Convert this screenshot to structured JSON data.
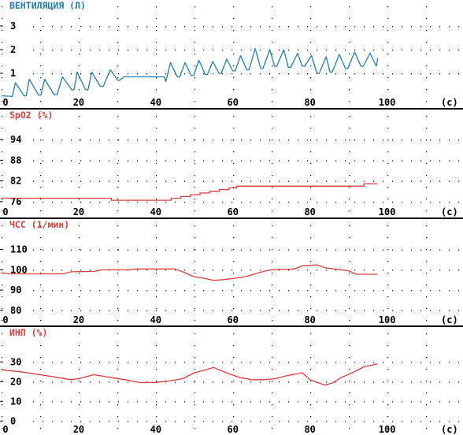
{
  "colors": {
    "ventilation": "#1f7fb3",
    "spo2": "#e03c3c",
    "hr": "#e03c3c",
    "pi": "#e03c3c",
    "axis_text": "#000000",
    "grid_dots": "#000000",
    "separator": "#000000"
  },
  "x_unit": "(с)",
  "x_ticks": [
    0,
    20,
    40,
    60,
    80,
    100
  ],
  "chart_data": [
    {
      "type": "line",
      "title": "ВЕНТИЛЯЦИЯ (Л)",
      "xlabel": "(с)",
      "xlim": [
        0,
        115
      ],
      "ylim": [
        0,
        3.5
      ],
      "x_tick_labels": [
        "0",
        "20",
        "40",
        "60",
        "80",
        "100"
      ],
      "y_ticks": [
        1,
        2,
        3
      ],
      "y_tick_labels": [
        "1",
        "2",
        "3"
      ],
      "series": [
        {
          "color_key": "ventilation",
          "x": [
            0,
            2.8,
            3.6,
            5.8,
            6.4,
            7.2,
            9.6,
            10.2,
            11.2,
            13.6,
            14.4,
            15.8,
            18.2,
            18.8,
            19.6,
            21.8,
            22.4,
            23.4,
            25.6,
            26.4,
            28.2,
            30.2,
            30.6,
            31.8,
            42.2,
            42.6,
            43.8,
            45.6,
            46.2,
            47.6,
            49.2,
            49.8,
            51.2,
            52.8,
            53.4,
            54.8,
            56.4,
            57.0,
            58.4,
            60.0,
            60.6,
            62.0,
            63.6,
            64.2,
            65.8,
            67.2,
            67.8,
            69.6,
            70.8,
            71.4,
            73.2,
            74.4,
            75.0,
            76.8,
            78.0,
            78.6,
            80.4,
            81.8,
            82.4,
            84.2,
            85.2,
            85.8,
            87.6,
            89.2,
            89.8,
            91.6,
            93.2,
            93.8,
            95.6,
            97.2,
            97.6
          ],
          "y": [
            0.05,
            0.02,
            0.6,
            0.05,
            0.05,
            0.75,
            0.08,
            0.08,
            0.75,
            0.1,
            0.1,
            0.85,
            0.3,
            0.3,
            1.05,
            0.3,
            0.3,
            1.05,
            0.45,
            0.45,
            1.15,
            0.7,
            0.7,
            0.85,
            0.85,
            0.65,
            1.45,
            0.85,
            0.85,
            1.45,
            0.9,
            0.9,
            1.55,
            0.95,
            0.95,
            1.5,
            1.0,
            1.0,
            1.6,
            1.1,
            1.1,
            1.75,
            1.15,
            1.15,
            2.05,
            1.2,
            1.2,
            2.0,
            1.3,
            1.3,
            2.0,
            1.25,
            1.25,
            1.85,
            1.3,
            1.3,
            1.75,
            1.0,
            1.0,
            1.7,
            1.05,
            1.05,
            1.8,
            1.2,
            1.2,
            1.9,
            1.3,
            1.3,
            1.85,
            1.3,
            1.65
          ]
        }
      ]
    },
    {
      "type": "line",
      "title": "SpO2 (%)",
      "xlabel": "(с)",
      "xlim": [
        0,
        115
      ],
      "ylim": [
        74.6,
        98.6
      ],
      "x_tick_labels": [
        "0",
        "20",
        "40",
        "60",
        "80",
        "100"
      ],
      "y_ticks": [
        76,
        82,
        88,
        94
      ],
      "y_tick_labels": [
        "76",
        "82",
        "88",
        "94"
      ],
      "series": [
        {
          "color_key": "spo2",
          "x": [
            0,
            28.5,
            28.5,
            44,
            44,
            46.5,
            46.5,
            49,
            49,
            51.5,
            51.5,
            54,
            54,
            56.5,
            56.5,
            59,
            59,
            61,
            61,
            94,
            94,
            97.5
          ],
          "y": [
            77,
            77,
            76.4,
            76.4,
            77,
            77,
            77.5,
            77.5,
            78,
            78,
            78.5,
            78.5,
            79,
            79,
            79.5,
            79.5,
            80,
            80,
            80.5,
            80.5,
            81.2,
            81.2
          ]
        }
      ]
    },
    {
      "type": "line",
      "title": "ЧСС (1/мин)",
      "xlabel": "(с)",
      "xlim": [
        0,
        115
      ],
      "ylim": [
        78,
        118
      ],
      "x_tick_labels": [
        "0",
        "20",
        "40",
        "60",
        "80",
        "100"
      ],
      "y_ticks": [
        80,
        90,
        100,
        110
      ],
      "y_tick_labels": [
        "80",
        "90",
        "100",
        "110"
      ],
      "series": [
        {
          "color_key": "hr",
          "x": [
            0,
            2,
            16,
            18,
            24,
            26,
            33,
            35,
            45,
            47,
            50,
            52,
            55,
            57,
            62,
            64,
            68,
            70,
            76,
            78,
            82,
            84,
            90,
            92,
            97.5
          ],
          "y": [
            98.5,
            98,
            98,
            99,
            99.2,
            100,
            100,
            100.4,
            100.4,
            99,
            96.5,
            96,
            94.8,
            95,
            96.2,
            97,
            99.2,
            100,
            100.4,
            102,
            102.4,
            101,
            99.5,
            97.8,
            97.8
          ]
        }
      ]
    },
    {
      "type": "line",
      "title": "ИНП (%)",
      "xlabel": "(с)",
      "xlim": [
        0,
        115
      ],
      "ylim": [
        -1.5,
        40.5
      ],
      "x_tick_labels": [
        "0",
        "20",
        "40",
        "60",
        "80",
        "100"
      ],
      "y_ticks": [
        0,
        10,
        20,
        30
      ],
      "y_tick_labels": [
        "0",
        "10",
        "20",
        "30"
      ],
      "series": [
        {
          "color_key": "pi",
          "x": [
            0,
            5,
            10,
            15,
            18,
            20,
            24,
            28,
            32,
            36,
            40,
            44,
            47,
            50,
            53,
            55,
            57,
            59,
            62,
            65,
            68,
            71,
            74,
            78,
            80,
            82,
            84,
            86,
            88,
            91,
            94,
            97.5
          ],
          "y": [
            26,
            25,
            23.5,
            22,
            21,
            21.5,
            23.5,
            22.2,
            21,
            19.5,
            19.6,
            20.5,
            21.5,
            24.5,
            26,
            27.2,
            25.5,
            24,
            22,
            21,
            21,
            21.5,
            23,
            24.5,
            21,
            19.5,
            18.2,
            19.5,
            22,
            24.5,
            27.5,
            29
          ]
        }
      ]
    }
  ]
}
